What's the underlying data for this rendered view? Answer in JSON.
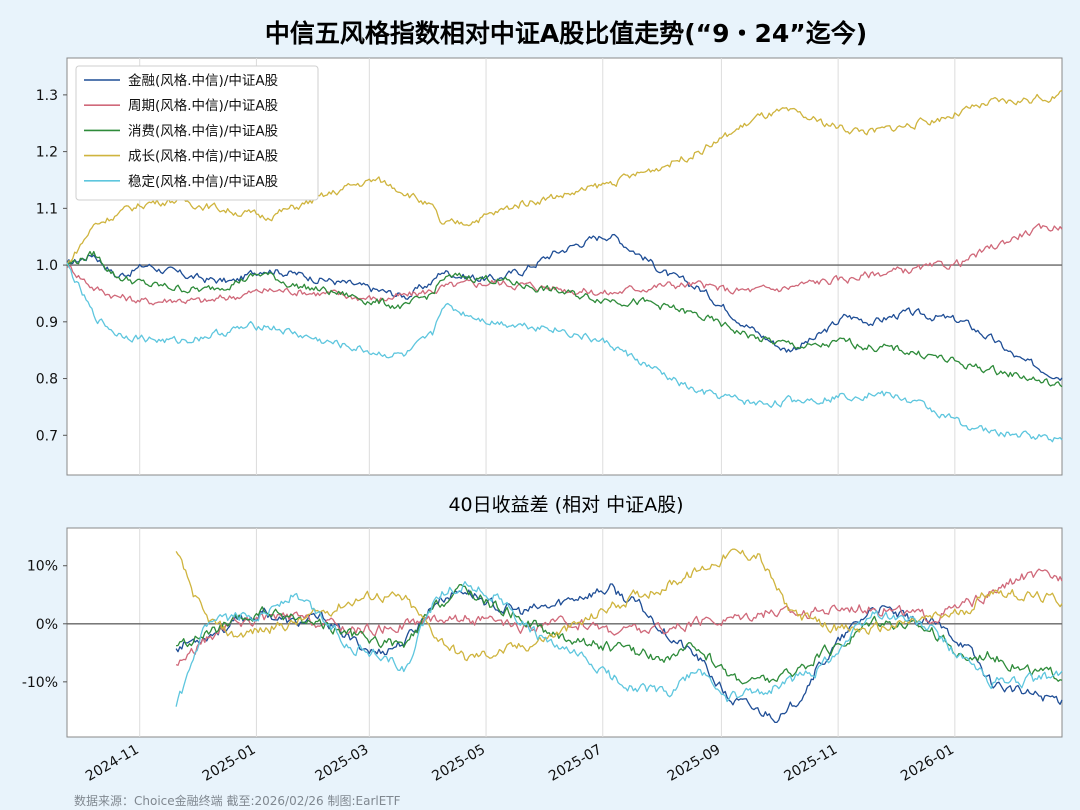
{
  "chart_data": [
    {
      "type": "line",
      "title": "中信五风格指数相对中证A股比值走势(“9・24”迄今)",
      "xlabel": "",
      "ylabel": "",
      "ylim": [
        0.63,
        1.365
      ],
      "yticks": [
        "0.7",
        "0.8",
        "0.9",
        "1.0",
        "1.1",
        "1.2",
        "1.3"
      ],
      "reference_line": 1.0,
      "legend_position": "top-left",
      "grid": "vertical",
      "anchors": [
        "2024-09-24",
        "2024-10-08",
        "2024-10-20",
        "2024-11-05",
        "2024-11-20",
        "2024-12-05",
        "2024-12-20",
        "2025-01-05",
        "2025-01-20",
        "2025-02-05",
        "2025-02-20",
        "2025-03-05",
        "2025-03-20",
        "2025-04-03",
        "2025-04-08",
        "2025-04-20",
        "2025-05-05",
        "2025-05-20",
        "2025-06-05",
        "2025-06-20",
        "2025-07-05",
        "2025-07-20",
        "2025-08-05",
        "2025-08-20",
        "2025-09-05",
        "2025-09-20",
        "2025-10-05",
        "2025-10-20",
        "2025-11-05",
        "2025-11-20",
        "2025-12-05",
        "2025-12-20",
        "2026-01-05",
        "2026-01-20",
        "2026-02-05",
        "2026-02-26"
      ],
      "series": [
        {
          "name": "金融(风格.中信)/中证A股",
          "color": "#1f4e96",
          "values": [
            1.0,
            1.02,
            0.98,
            1.0,
            0.985,
            0.975,
            0.97,
            0.995,
            0.985,
            0.975,
            0.965,
            0.955,
            0.945,
            0.97,
            0.99,
            0.98,
            0.975,
            0.99,
            1.02,
            1.04,
            1.055,
            1.02,
            0.98,
            0.96,
            0.92,
            0.88,
            0.85,
            0.87,
            0.91,
            0.9,
            0.915,
            0.91,
            0.9,
            0.87,
            0.83,
            0.805
          ]
        },
        {
          "name": "周期(风格.中信)/中证A股",
          "color": "#d0697a",
          "values": [
            1.0,
            0.96,
            0.945,
            0.935,
            0.94,
            0.935,
            0.945,
            0.955,
            0.955,
            0.95,
            0.945,
            0.94,
            0.945,
            0.955,
            0.96,
            0.965,
            0.97,
            0.965,
            0.96,
            0.955,
            0.95,
            0.96,
            0.965,
            0.965,
            0.955,
            0.955,
            0.96,
            0.97,
            0.975,
            0.985,
            0.99,
            0.995,
            1.005,
            1.03,
            1.055,
            1.07
          ]
        },
        {
          "name": "消费(风格.中信)/中证A股",
          "color": "#2e8b3a",
          "values": [
            1.0,
            1.02,
            0.98,
            0.965,
            0.96,
            0.955,
            0.97,
            0.985,
            0.965,
            0.955,
            0.945,
            0.935,
            0.925,
            0.95,
            0.975,
            0.98,
            0.975,
            0.965,
            0.955,
            0.945,
            0.94,
            0.935,
            0.925,
            0.91,
            0.89,
            0.87,
            0.86,
            0.855,
            0.865,
            0.855,
            0.85,
            0.84,
            0.825,
            0.815,
            0.805,
            0.785
          ]
        },
        {
          "name": "成长(风格.中信)/中证A股",
          "color": "#cfb43e",
          "values": [
            1.0,
            1.07,
            1.09,
            1.11,
            1.115,
            1.105,
            1.095,
            1.085,
            1.1,
            1.12,
            1.14,
            1.15,
            1.13,
            1.1,
            1.07,
            1.075,
            1.09,
            1.11,
            1.12,
            1.13,
            1.145,
            1.16,
            1.18,
            1.2,
            1.23,
            1.26,
            1.27,
            1.255,
            1.24,
            1.235,
            1.245,
            1.255,
            1.27,
            1.285,
            1.29,
            1.3
          ]
        },
        {
          "name": "稳定(风格.中信)/中证A股",
          "color": "#5ec6de",
          "values": [
            1.0,
            0.91,
            0.88,
            0.87,
            0.865,
            0.875,
            0.885,
            0.895,
            0.88,
            0.865,
            0.855,
            0.845,
            0.84,
            0.875,
            0.93,
            0.915,
            0.9,
            0.895,
            0.89,
            0.875,
            0.86,
            0.83,
            0.8,
            0.775,
            0.765,
            0.755,
            0.76,
            0.765,
            0.77,
            0.775,
            0.765,
            0.745,
            0.72,
            0.705,
            0.7,
            0.695
          ]
        }
      ]
    },
    {
      "type": "line",
      "title": "40日收益差 (相对 中证A股)",
      "xlabel": "",
      "ylabel": "",
      "ylim": [
        -19.5,
        16.5
      ],
      "yticks": [
        "10%",
        "0%",
        "-10%"
      ],
      "reference_line": 0,
      "grid": "vertical",
      "xticks": [
        "2024-11",
        "2025-01",
        "2025-03",
        "2025-05",
        "2025-07",
        "2025-09",
        "2025-11",
        "2026-01"
      ],
      "anchors": [
        "2024-11-20",
        "2024-12-05",
        "2024-12-20",
        "2025-01-05",
        "2025-01-20",
        "2025-02-05",
        "2025-02-20",
        "2025-03-05",
        "2025-03-20",
        "2025-04-05",
        "2025-04-20",
        "2025-05-05",
        "2025-05-20",
        "2025-06-05",
        "2025-06-20",
        "2025-07-05",
        "2025-07-20",
        "2025-08-05",
        "2025-08-20",
        "2025-09-05",
        "2025-09-20",
        "2025-10-05",
        "2025-10-20",
        "2025-11-05",
        "2025-11-20",
        "2025-12-05",
        "2025-12-20",
        "2026-01-05",
        "2026-01-20",
        "2026-02-05",
        "2026-02-26"
      ],
      "series": [
        {
          "name": "金融(风格.中信)/中证A股",
          "color": "#1f4e96",
          "values": [
            -4,
            -2,
            0,
            2,
            0,
            1,
            -3,
            -5,
            -3,
            4,
            6,
            3,
            2,
            3,
            5,
            6,
            3,
            -2,
            -6,
            -13,
            -15,
            -16,
            -8,
            -2,
            3,
            1,
            0,
            -3,
            -10,
            -12,
            -13
          ]
        },
        {
          "name": "周期(风格.中信)/中证A股",
          "color": "#d0697a",
          "values": [
            -7,
            -3,
            0,
            1,
            1,
            0,
            -1,
            -1,
            0,
            1,
            1,
            0,
            -1,
            0,
            0,
            -1,
            -1,
            -1,
            0,
            1,
            2,
            2,
            2,
            3,
            3,
            2,
            1,
            3,
            5,
            8,
            8
          ]
        },
        {
          "name": "消费(风格.中信)/中证A股",
          "color": "#2e8b3a",
          "values": [
            -4,
            -2,
            0,
            2,
            1,
            0,
            -2,
            -3,
            -4,
            3,
            6,
            3,
            1,
            -2,
            -3,
            -4,
            -5,
            -6,
            -4,
            -9,
            -10,
            -9,
            -6,
            -3,
            1,
            0,
            -1,
            -6,
            -5,
            -8,
            -9
          ]
        },
        {
          "name": "成长(风格.中信)/中证A股",
          "color": "#cfb43e",
          "values": [
            12,
            1,
            -2,
            -1,
            0,
            2,
            4,
            5,
            4,
            -2,
            -6,
            -5,
            -4,
            -2,
            0,
            3,
            5,
            7,
            9,
            12,
            12,
            3,
            0,
            -1,
            -1,
            0,
            1,
            2,
            6,
            5,
            4
          ]
        },
        {
          "name": "稳定(风格.中信)/中证A股",
          "color": "#5ec6de",
          "values": [
            -15,
            -1,
            1,
            2,
            5,
            1,
            -4,
            -5,
            -8,
            5,
            7,
            5,
            0,
            -4,
            -6,
            -9,
            -11,
            -12,
            -8,
            -13,
            -12,
            -10,
            -8,
            -3,
            2,
            1,
            -1,
            -6,
            -10,
            -10,
            -9
          ]
        }
      ]
    }
  ],
  "footer": {
    "source": "数据来源：Choice金融终端 截至:2026/02/26 制图:EarlETF"
  }
}
